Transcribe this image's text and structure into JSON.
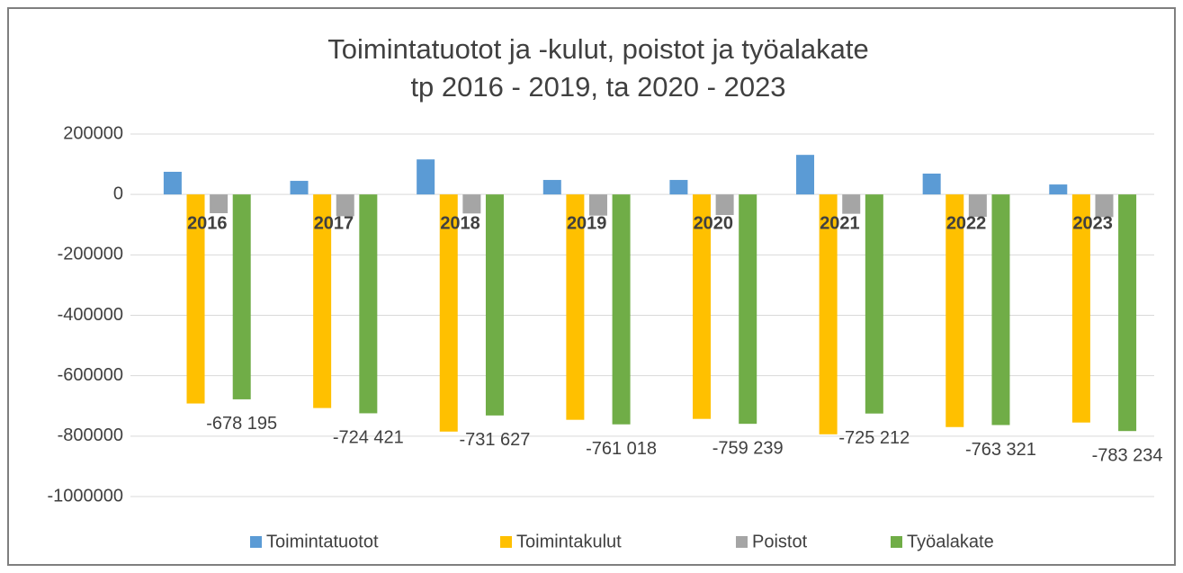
{
  "chart_data": {
    "type": "bar",
    "title": "Toimintatuotot ja -kulut, poistot ja työalakate",
    "subtitle": "tp 2016 - 2019, ta 2020 - 2023",
    "categories": [
      "2016",
      "2017",
      "2018",
      "2019",
      "2020",
      "2021",
      "2022",
      "2023"
    ],
    "series": [
      {
        "name": "Toimintatuotot",
        "color": "#5b9bd5",
        "values": [
          75000,
          45000,
          116000,
          48000,
          48000,
          131000,
          69000,
          33000
        ]
      },
      {
        "name": "Toimintakulut",
        "color": "#ffc000",
        "values": [
          -692000,
          -707000,
          -785000,
          -746000,
          -743000,
          -794000,
          -770000,
          -755000
        ]
      },
      {
        "name": "Poistot",
        "color": "#a5a5a5",
        "values": [
          -62000,
          -72000,
          -63000,
          -70000,
          -68000,
          -64000,
          -74000,
          -75000
        ]
      },
      {
        "name": "Työalakate",
        "color": "#70ad47",
        "values": [
          -678195,
          -724421,
          -731627,
          -761018,
          -759239,
          -725212,
          -763321,
          -783234
        ],
        "value_labels": [
          "-678 195",
          "-724 421",
          "-731 627",
          "-761 018",
          "-759 239",
          "-725 212",
          "-763 321",
          "-783 234"
        ]
      }
    ],
    "ylim": [
      -1000000,
      200000
    ],
    "yticks": [
      -1000000,
      -800000,
      -600000,
      -400000,
      -200000,
      0,
      200000
    ],
    "grid": true,
    "legend": "bottom"
  }
}
